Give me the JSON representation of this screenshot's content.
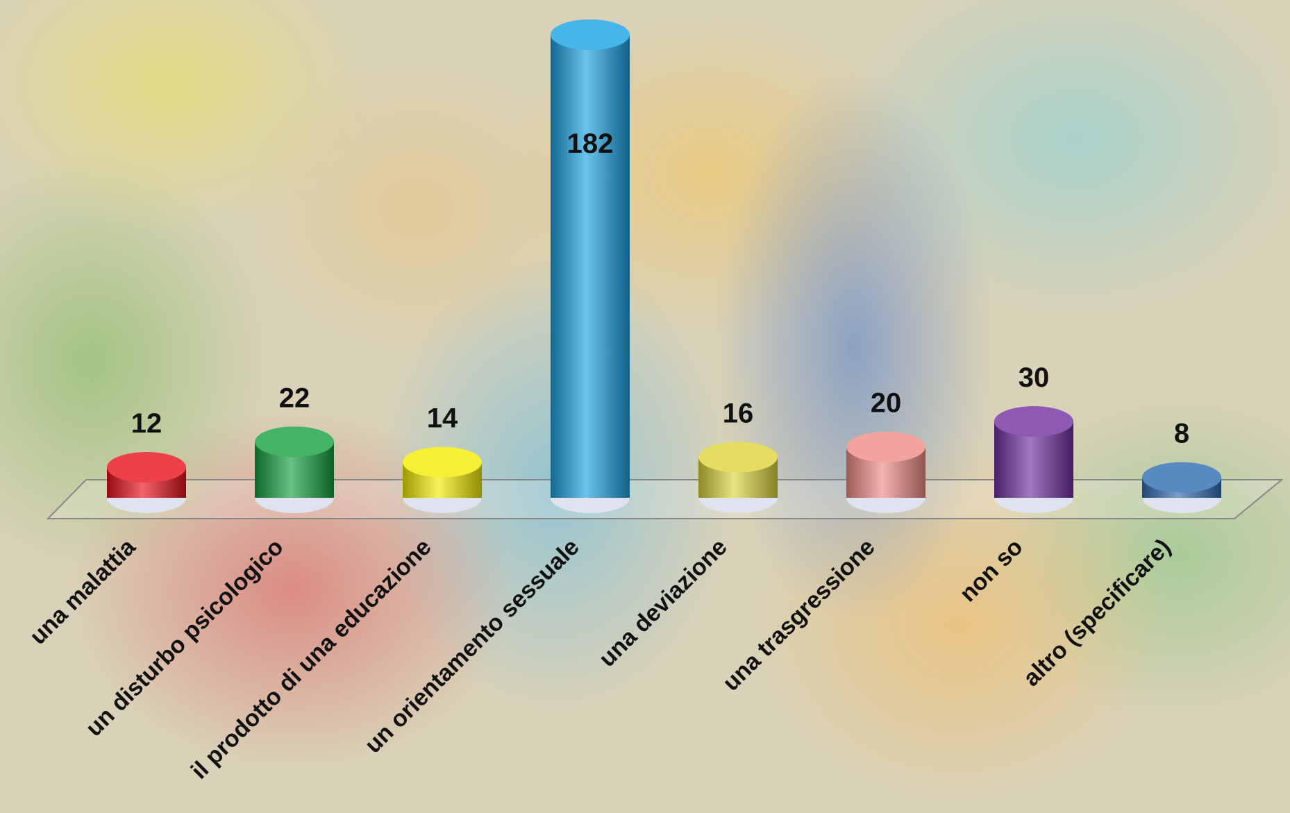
{
  "chart_data": {
    "type": "bar",
    "categories": [
      "una malattia",
      "un disturbo psicologico",
      "il prodotto di una educazione",
      "un orientamento sessuale",
      "una deviazione",
      "una trasgressione",
      "non so",
      "altro  (specificare)"
    ],
    "values": [
      12,
      22,
      14,
      182,
      16,
      20,
      30,
      8
    ],
    "colors": [
      "#e8101a",
      "#14a040",
      "#f2ec00",
      "#1aa2e2",
      "#ddd53a",
      "#f08c84",
      "#7030a0",
      "#2f6cb2"
    ]
  }
}
